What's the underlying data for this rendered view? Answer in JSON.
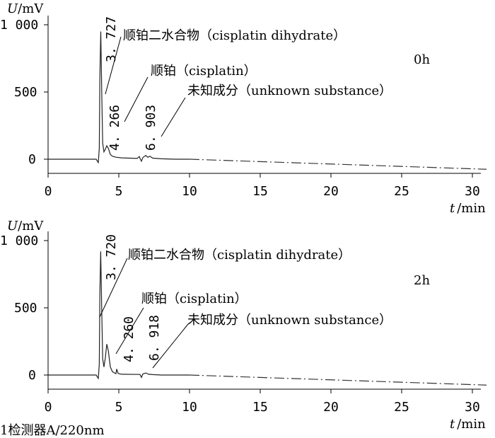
{
  "chart_data": [
    {
      "type": "line",
      "time_label": "0h",
      "ylabel": "U/mV",
      "ylabel_var": "U",
      "ylabel_unit": "/mV",
      "xlabel": "t /min",
      "xlabel_var": "t",
      "xlabel_unit": "/min",
      "xlim": [
        0,
        30
      ],
      "ylim": [
        -60,
        1000
      ],
      "x_ticks": [
        "0",
        "5",
        "10",
        "15",
        "20",
        "25",
        "30"
      ],
      "y_ticks": [
        "1 000",
        "500",
        "0"
      ],
      "series": [
        {
          "x": [
            0,
            3.4,
            3.55,
            3.62,
            3.66,
            3.727,
            3.79,
            3.86,
            3.95,
            4.05,
            4.15,
            4.266,
            4.4,
            4.55,
            4.8,
            5.2,
            5.8,
            6.3,
            6.45,
            6.5,
            6.6,
            6.7,
            6.903,
            7.05,
            7.2,
            7.4,
            8,
            9,
            10
          ],
          "y": [
            0,
            0,
            -25,
            80,
            600,
            950,
            520,
            120,
            55,
            75,
            100,
            80,
            35,
            22,
            15,
            10,
            8,
            6,
            20,
            6,
            -15,
            12,
            28,
            14,
            22,
            8,
            3,
            0,
            0
          ]
        }
      ],
      "extension": {
        "x": [
          10,
          31
        ],
        "y": [
          0,
          -75
        ]
      },
      "peaks": [
        {
          "rt": "3. 727",
          "rt_value": 3.727,
          "name": "顺铂二水合物（cisplatin dihydrate）"
        },
        {
          "rt": "4. 266",
          "rt_value": 4.266,
          "name": "顺铂（cisplatin）"
        },
        {
          "rt": "6. 903",
          "rt_value": 6.903,
          "name": "未知成分（unknown substance）"
        }
      ]
    },
    {
      "type": "line",
      "time_label": "2h",
      "ylabel": "U/mV",
      "ylabel_var": "U",
      "ylabel_unit": "/mV",
      "xlabel": "t /min",
      "xlabel_var": "t",
      "xlabel_unit": "/min",
      "xlim": [
        0,
        30
      ],
      "ylim": [
        -60,
        1000
      ],
      "x_ticks": [
        "0",
        "5",
        "10",
        "15",
        "20",
        "25",
        "30"
      ],
      "y_ticks": [
        "1 000",
        "500",
        "0"
      ],
      "series": [
        {
          "x": [
            0,
            3.4,
            3.55,
            3.62,
            3.66,
            3.72,
            3.79,
            3.86,
            3.95,
            4.05,
            4.15,
            4.26,
            4.4,
            4.55,
            4.7,
            4.8,
            4.85,
            4.95,
            5.2,
            6.5,
            6.6,
            6.7,
            6.918,
            7.1,
            7.4,
            8,
            9,
            10
          ],
          "y": [
            0,
            0,
            -25,
            80,
            600,
            920,
            500,
            120,
            60,
            130,
            230,
            180,
            60,
            25,
            15,
            10,
            45,
            12,
            6,
            4,
            -18,
            8,
            15,
            6,
            3,
            0,
            0,
            0
          ]
        }
      ],
      "extension": {
        "x": [
          10,
          31
        ],
        "y": [
          0,
          -75
        ]
      },
      "peaks": [
        {
          "rt": "3. 720",
          "rt_value": 3.72,
          "name": "顺铂二水合物（cisplatin dihydrate）"
        },
        {
          "rt": "4. 260",
          "rt_value": 4.26,
          "name": "顺铂（cisplatin）"
        },
        {
          "rt": "6. 918",
          "rt_value": 6.918,
          "name": "未知成分（unknown substance）"
        }
      ]
    }
  ],
  "detector_label": "1检测器A/220nm"
}
